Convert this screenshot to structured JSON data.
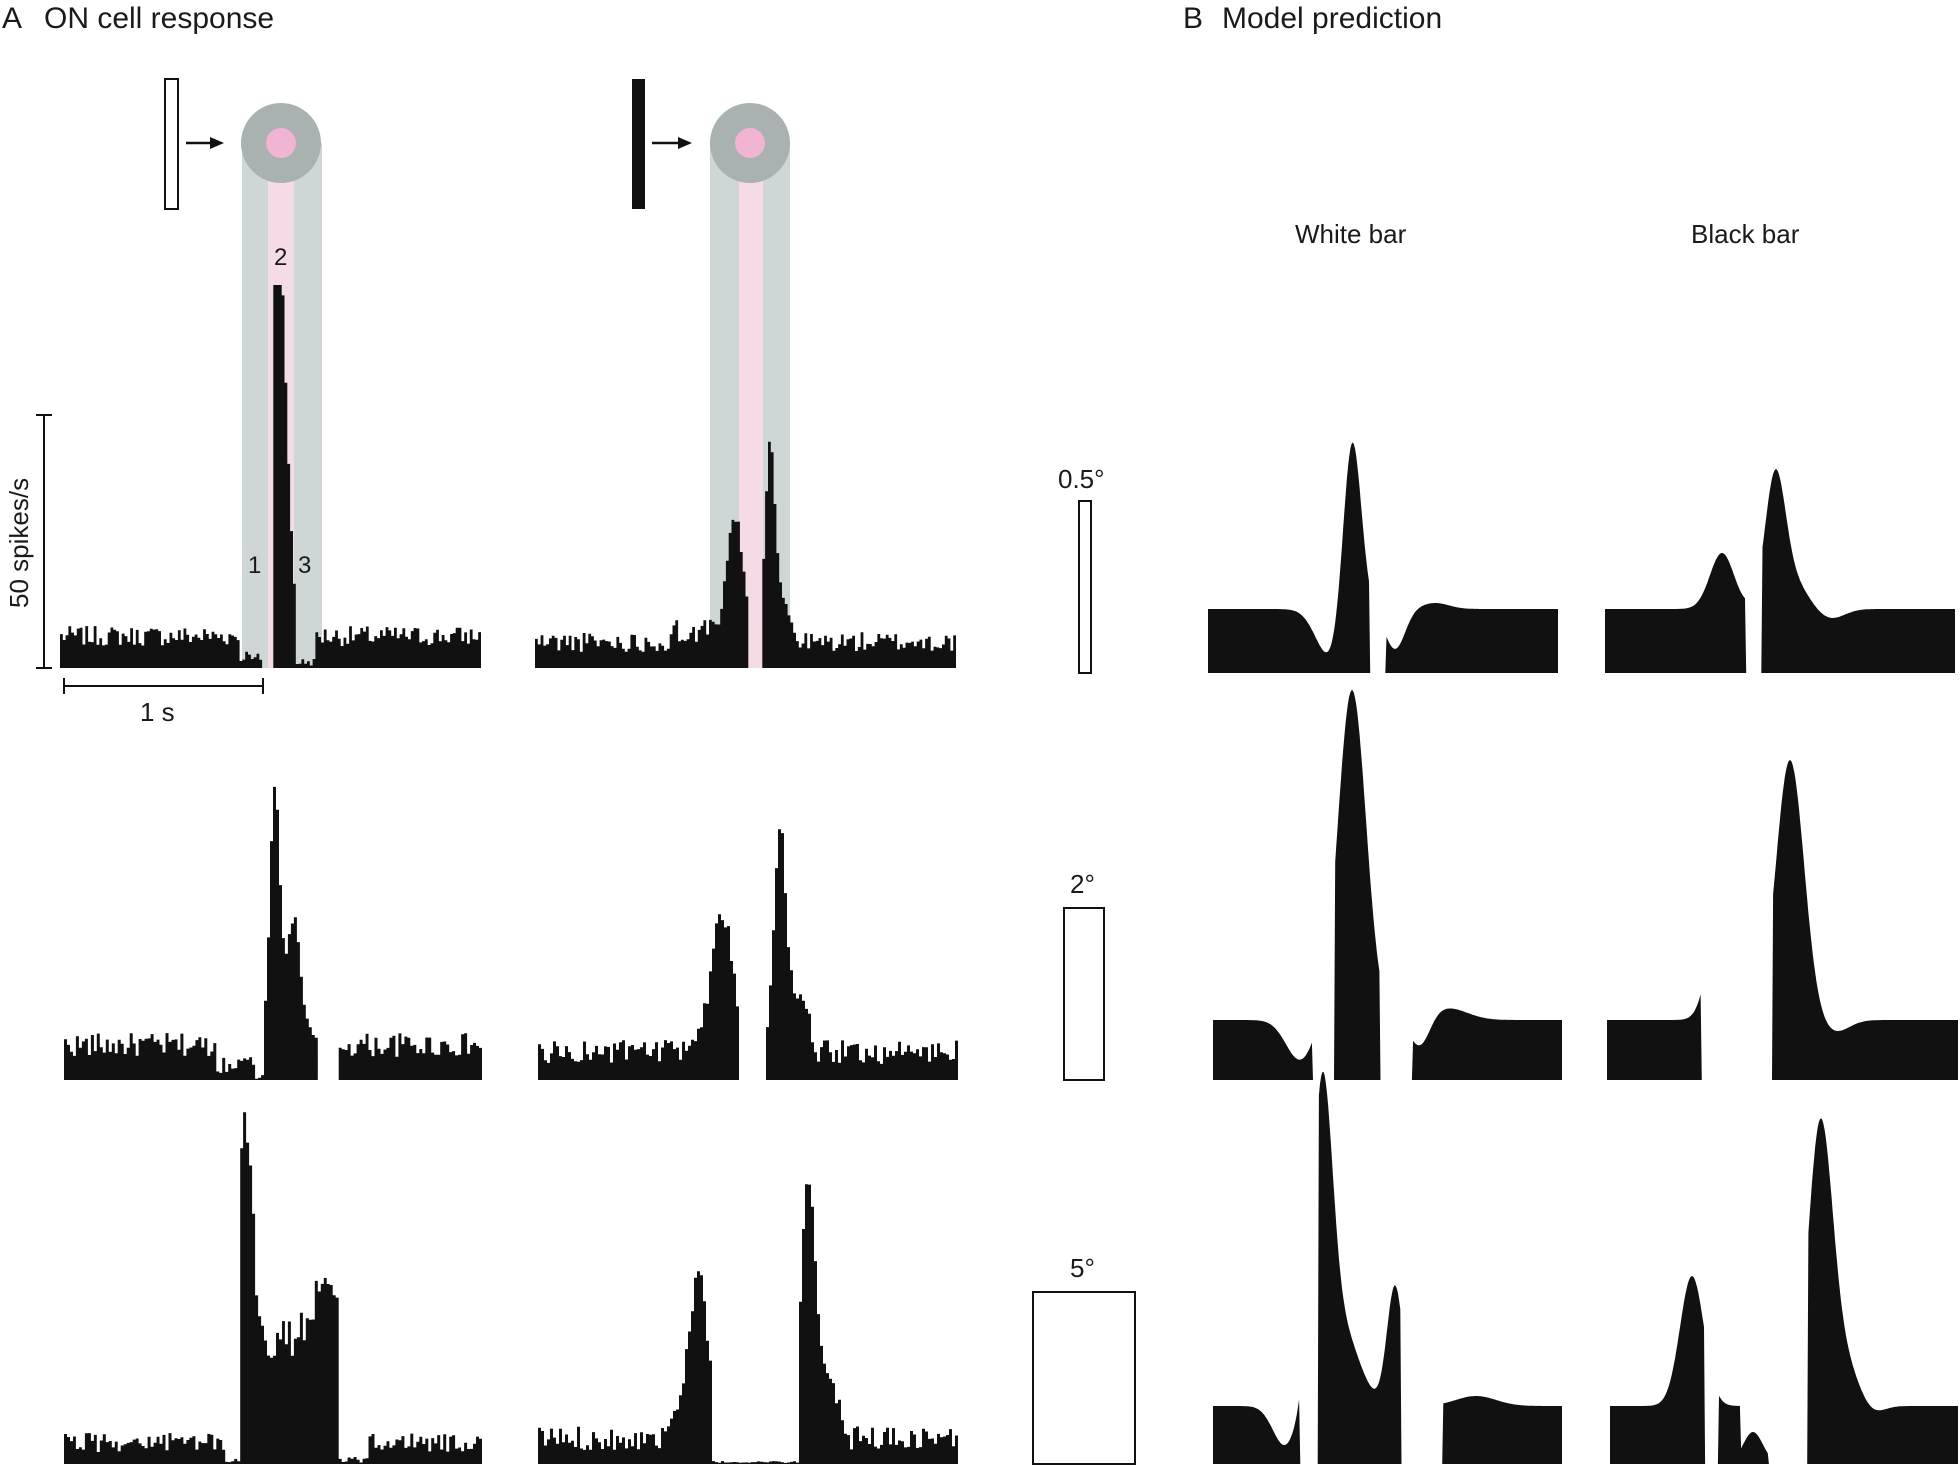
{
  "panel_a": {
    "letter": "A",
    "title": "ON cell response",
    "scale_y_label": "50 spikes/s",
    "scale_x_label": "1 s",
    "phase_labels": [
      "1",
      "2",
      "3"
    ]
  },
  "panel_b": {
    "letter": "B",
    "title": "Model prediction",
    "col_white": "White bar",
    "col_black": "Black bar"
  },
  "bar_widths": [
    "0.5°",
    "2°",
    "5°"
  ],
  "colors": {
    "trace": "#111111",
    "surround": "#cfd6d6",
    "center": "#f5dbe6",
    "surround_disk": "#a9b1b1",
    "center_disk": "#f1b4d2"
  },
  "icons": [
    "white-bar-icon",
    "black-bar-icon",
    "arrow-right-icon",
    "receptive-field-icon"
  ]
}
